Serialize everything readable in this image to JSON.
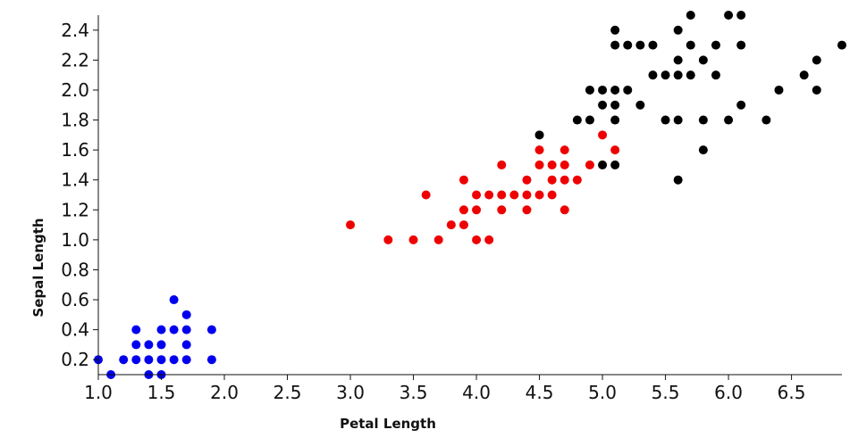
{
  "chart_data": {
    "type": "scatter",
    "title": "",
    "xlabel": "Petal Length",
    "ylabel": "Sepal Length",
    "xlim": [
      1.0,
      6.9
    ],
    "ylim": [
      0.1,
      2.5
    ],
    "x_ticks": [
      "1.0",
      "1.5",
      "2.0",
      "2.5",
      "3.0",
      "3.5",
      "4.0",
      "4.5",
      "5.0",
      "5.5",
      "6.0",
      "6.5"
    ],
    "y_ticks": [
      "0.2",
      "0.4",
      "0.6",
      "0.8",
      "1.0",
      "1.2",
      "1.4",
      "1.6",
      "1.8",
      "2.0",
      "2.2",
      "2.4"
    ],
    "grid": false,
    "legend": "none",
    "series": [
      {
        "color": "#0000ee",
        "points": [
          [
            1.0,
            0.2
          ],
          [
            1.1,
            0.1
          ],
          [
            1.2,
            0.2
          ],
          [
            1.3,
            0.2
          ],
          [
            1.3,
            0.3
          ],
          [
            1.3,
            0.4
          ],
          [
            1.4,
            0.1
          ],
          [
            1.4,
            0.2
          ],
          [
            1.4,
            0.3
          ],
          [
            1.5,
            0.1
          ],
          [
            1.5,
            0.2
          ],
          [
            1.5,
            0.3
          ],
          [
            1.5,
            0.4
          ],
          [
            1.6,
            0.2
          ],
          [
            1.6,
            0.4
          ],
          [
            1.6,
            0.6
          ],
          [
            1.7,
            0.2
          ],
          [
            1.7,
            0.3
          ],
          [
            1.7,
            0.4
          ],
          [
            1.7,
            0.5
          ],
          [
            1.9,
            0.2
          ],
          [
            1.9,
            0.4
          ]
        ]
      },
      {
        "color": "#ee0000",
        "points": [
          [
            3.0,
            1.1
          ],
          [
            3.3,
            1.0
          ],
          [
            3.5,
            1.0
          ],
          [
            3.6,
            1.3
          ],
          [
            3.7,
            1.0
          ],
          [
            3.8,
            1.1
          ],
          [
            3.9,
            1.1
          ],
          [
            3.9,
            1.2
          ],
          [
            3.9,
            1.4
          ],
          [
            4.0,
            1.0
          ],
          [
            4.0,
            1.2
          ],
          [
            4.0,
            1.3
          ],
          [
            4.1,
            1.0
          ],
          [
            4.1,
            1.3
          ],
          [
            4.2,
            1.2
          ],
          [
            4.2,
            1.3
          ],
          [
            4.2,
            1.5
          ],
          [
            4.3,
            1.3
          ],
          [
            4.4,
            1.2
          ],
          [
            4.4,
            1.3
          ],
          [
            4.4,
            1.4
          ],
          [
            4.5,
            1.3
          ],
          [
            4.5,
            1.5
          ],
          [
            4.5,
            1.6
          ],
          [
            4.6,
            1.3
          ],
          [
            4.6,
            1.4
          ],
          [
            4.6,
            1.5
          ],
          [
            4.7,
            1.2
          ],
          [
            4.7,
            1.4
          ],
          [
            4.7,
            1.5
          ],
          [
            4.7,
            1.6
          ],
          [
            4.8,
            1.4
          ],
          [
            4.9,
            1.5
          ],
          [
            5.0,
            1.7
          ],
          [
            5.1,
            1.6
          ]
        ]
      },
      {
        "color": "#000000",
        "points": [
          [
            4.5,
            1.7
          ],
          [
            4.8,
            1.8
          ],
          [
            4.9,
            1.8
          ],
          [
            4.9,
            2.0
          ],
          [
            5.0,
            1.5
          ],
          [
            5.0,
            1.9
          ],
          [
            5.0,
            2.0
          ],
          [
            5.1,
            1.5
          ],
          [
            5.1,
            1.8
          ],
          [
            5.1,
            1.9
          ],
          [
            5.1,
            2.0
          ],
          [
            5.1,
            2.3
          ],
          [
            5.1,
            2.4
          ],
          [
            5.2,
            2.0
          ],
          [
            5.2,
            2.3
          ],
          [
            5.3,
            1.9
          ],
          [
            5.3,
            2.3
          ],
          [
            5.4,
            2.1
          ],
          [
            5.4,
            2.3
          ],
          [
            5.5,
            1.8
          ],
          [
            5.5,
            2.1
          ],
          [
            5.6,
            1.4
          ],
          [
            5.6,
            1.8
          ],
          [
            5.6,
            2.1
          ],
          [
            5.6,
            2.2
          ],
          [
            5.6,
            2.4
          ],
          [
            5.7,
            2.1
          ],
          [
            5.7,
            2.3
          ],
          [
            5.7,
            2.5
          ],
          [
            5.8,
            1.6
          ],
          [
            5.8,
            1.8
          ],
          [
            5.8,
            2.2
          ],
          [
            5.9,
            2.1
          ],
          [
            5.9,
            2.3
          ],
          [
            6.0,
            1.8
          ],
          [
            6.0,
            2.5
          ],
          [
            6.1,
            1.9
          ],
          [
            6.1,
            2.3
          ],
          [
            6.1,
            2.5
          ],
          [
            6.3,
            1.8
          ],
          [
            6.4,
            2.0
          ],
          [
            6.6,
            2.1
          ],
          [
            6.7,
            2.0
          ],
          [
            6.7,
            2.2
          ],
          [
            6.9,
            2.3
          ]
        ]
      }
    ]
  }
}
